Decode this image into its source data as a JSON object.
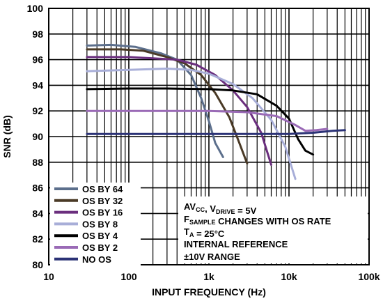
{
  "chart_data": {
    "type": "line",
    "xlabel": "INPUT FREQUENCY (Hz)",
    "ylabel": "SNR (dB)",
    "xscale": "log",
    "xlim": [
      10,
      100000
    ],
    "ylim": [
      80,
      100
    ],
    "x_ticks": [
      {
        "value": 10,
        "label": "10"
      },
      {
        "value": 100,
        "label": "100"
      },
      {
        "value": 1000,
        "label": "1k"
      },
      {
        "value": 10000,
        "label": "10k"
      },
      {
        "value": 100000,
        "label": "100k"
      }
    ],
    "y_ticks": [
      80,
      82,
      84,
      86,
      88,
      90,
      92,
      94,
      96,
      98,
      100
    ],
    "grid": true,
    "legend_position": "bottom-left",
    "series": [
      {
        "name": "OS BY 64",
        "color": "#5c6f8c",
        "points": [
          [
            30,
            97.1
          ],
          [
            60,
            97.15
          ],
          [
            120,
            97.0
          ],
          [
            250,
            96.5
          ],
          [
            400,
            96.0
          ],
          [
            600,
            94.8
          ],
          [
            800,
            93.0
          ],
          [
            1000,
            91.2
          ],
          [
            1200,
            89.5
          ],
          [
            1500,
            88.4
          ]
        ]
      },
      {
        "name": "OS BY 32",
        "color": "#4a3a26",
        "points": [
          [
            30,
            96.8
          ],
          [
            80,
            96.8
          ],
          [
            150,
            96.7
          ],
          [
            300,
            96.2
          ],
          [
            500,
            95.7
          ],
          [
            800,
            94.8
          ],
          [
            1200,
            93.4
          ],
          [
            1800,
            91.5
          ],
          [
            2300,
            89.8
          ],
          [
            3000,
            87.9
          ]
        ]
      },
      {
        "name": "OS BY 16",
        "color": "#6b2f7e",
        "points": [
          [
            30,
            96.2
          ],
          [
            100,
            96.2
          ],
          [
            200,
            96.1
          ],
          [
            400,
            96.0
          ],
          [
            700,
            95.6
          ],
          [
            1200,
            94.8
          ],
          [
            2000,
            93.6
          ],
          [
            3000,
            92.3
          ],
          [
            4500,
            90.3
          ],
          [
            6000,
            87.8
          ]
        ]
      },
      {
        "name": "OS BY 8",
        "color": "#a8aed8",
        "points": [
          [
            30,
            95.1
          ],
          [
            100,
            95.2
          ],
          [
            300,
            95.3
          ],
          [
            600,
            95.2
          ],
          [
            1000,
            94.9
          ],
          [
            2000,
            94.1
          ],
          [
            3500,
            93.0
          ],
          [
            6000,
            91.3
          ],
          [
            9000,
            89.2
          ],
          [
            12000,
            86.7
          ]
        ]
      },
      {
        "name": "OS BY 4",
        "color": "#000000",
        "points": [
          [
            30,
            93.7
          ],
          [
            100,
            93.75
          ],
          [
            300,
            93.75
          ],
          [
            1000,
            93.7
          ],
          [
            2000,
            93.6
          ],
          [
            4000,
            93.3
          ],
          [
            7000,
            92.4
          ],
          [
            10000,
            91.4
          ],
          [
            13000,
            89.8
          ],
          [
            16000,
            88.9
          ],
          [
            20000,
            88.6
          ]
        ]
      },
      {
        "name": "OS BY 2",
        "color": "#9a6ab6",
        "points": [
          [
            30,
            92.0
          ],
          [
            100,
            92.0
          ],
          [
            500,
            92.0
          ],
          [
            1000,
            92.0
          ],
          [
            3000,
            91.9
          ],
          [
            7000,
            91.6
          ],
          [
            12000,
            90.9
          ],
          [
            16000,
            90.45
          ],
          [
            22000,
            90.5
          ],
          [
            30000,
            90.6
          ]
        ]
      },
      {
        "name": "NO OS",
        "color": "#2b3276",
        "points": [
          [
            30,
            90.2
          ],
          [
            100,
            90.2
          ],
          [
            1000,
            90.2
          ],
          [
            10000,
            90.2
          ],
          [
            20000,
            90.3
          ],
          [
            35000,
            90.45
          ],
          [
            50000,
            90.5
          ]
        ]
      }
    ],
    "annotation_lines": [
      {
        "text": "AV",
        "sub": "CC",
        "text2": ", V",
        "sub2": "DRIVE",
        "text3": " = 5V"
      },
      {
        "text": "F",
        "sub": "SAMPLE",
        "text2": " CHANGES WITH OS RATE",
        "sub2": "",
        "text3": ""
      },
      {
        "text": "T",
        "sub": "A",
        "text2": " = 25°C",
        "sub2": "",
        "text3": ""
      },
      {
        "text": "INTERNAL REFERENCE",
        "sub": "",
        "text2": "",
        "sub2": "",
        "text3": ""
      },
      {
        "text": "±10V RANGE",
        "sub": "",
        "text2": "",
        "sub2": "",
        "text3": ""
      }
    ]
  }
}
